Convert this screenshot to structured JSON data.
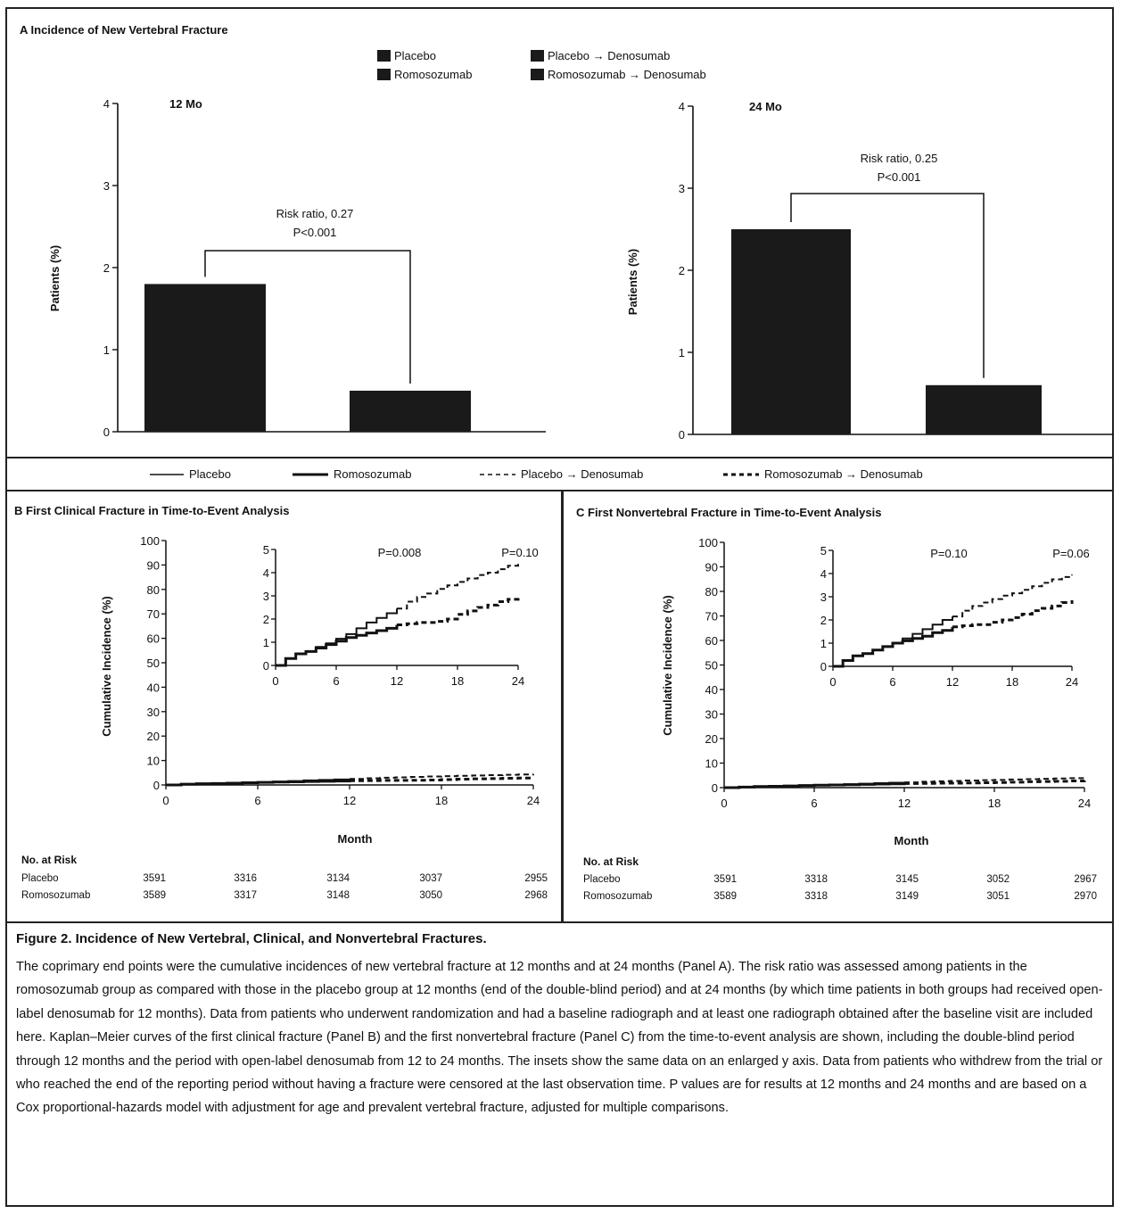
{
  "panel_a": {
    "title": "A  Incidence of New Vertebral Fracture",
    "ylabel": "Patients (%)",
    "legend": [
      "Placebo",
      "Romosozumab",
      "Placebo → Denosumab",
      "Romosozumab → Denosumab"
    ],
    "charts": [
      {
        "heading": "12 Mo",
        "risk_ratio": "Risk ratio, 0.27",
        "p_value": "P<0.001"
      },
      {
        "heading": "24 Mo",
        "risk_ratio": "Risk ratio, 0.25",
        "p_value": "P<0.001"
      }
    ]
  },
  "line_legend": [
    "Placebo",
    "Romosozumab",
    "Placebo → Denosumab",
    "Romosozumab → Denosumab"
  ],
  "panel_b": {
    "title": "B  First Clinical Fracture in Time-to-Event Analysis",
    "ylabel": "Cumulative Incidence (%)",
    "xlabel": "Month",
    "inset_p_values": [
      "P=0.008",
      "P=0.10"
    ],
    "risk_table": {
      "title": "No. at Risk",
      "rows": [
        {
          "label": "Placebo",
          "values": [
            "3591",
            "3316",
            "3134",
            "3037",
            "2955"
          ]
        },
        {
          "label": "Romosozumab",
          "values": [
            "3589",
            "3317",
            "3148",
            "3050",
            "2968"
          ]
        }
      ]
    }
  },
  "panel_c": {
    "title": "C  First Nonvertebral Fracture in Time-to-Event Analysis",
    "ylabel": "Cumulative Incidence (%)",
    "xlabel": "Month",
    "inset_p_values": [
      "P=0.10",
      "P=0.06"
    ],
    "risk_table": {
      "title": "No. at Risk",
      "rows": [
        {
          "label": "Placebo",
          "values": [
            "3591",
            "3318",
            "3145",
            "3052",
            "2967"
          ]
        },
        {
          "label": "Romosozumab",
          "values": [
            "3589",
            "3318",
            "3149",
            "3051",
            "2970"
          ]
        }
      ]
    }
  },
  "caption": {
    "title": "Figure 2. Incidence of New Vertebral, Clinical, and Nonvertebral Fractures.",
    "body": "The coprimary end points were the cumulative incidences of new vertebral fracture at 12 months and at 24 months (Panel A). The risk ratio was assessed among patients in the romosozumab group as compared with those in the placebo group at 12 months (end of the double-blind period) and at 24 months (by which time patients in both groups had received open-label denosumab for 12 months). Data from patients who underwent randomization and had a baseline radiograph and at least one radiograph obtained after the base­line visit are included here. Kaplan–Meier curves of the first clinical fracture (Panel B) and the first nonvertebral fracture (Panel C) from the time-to-event analysis are shown, including the double-blind period through 12 months and the period with open-label denosumab from 12 to 24 months. The insets show the same data on an enlarged y axis. Data from patients who withdrew from the trial or who reached the end of the reporting period without having a fracture were censored at the last observation time. P values are for results at 12 months and 24 months and are based on a Cox proportional-hazards model with adjustment for age and prevalent vertebral fracture, adjusted for multiple comparisons."
  },
  "chart_data": [
    {
      "type": "bar",
      "panel": "A",
      "title": "12 Mo",
      "ylabel": "Patients (%)",
      "ylim": [
        0,
        4
      ],
      "yticks": [
        0,
        1,
        2,
        3,
        4
      ],
      "categories": [
        "Placebo",
        "Romosozumab"
      ],
      "values": [
        1.8,
        0.5
      ],
      "colors": [
        "#1a1a1a",
        "#1a1a1a"
      ]
    },
    {
      "type": "bar",
      "panel": "A",
      "title": "24 Mo",
      "ylabel": "Patients (%)",
      "ylim": [
        0,
        4
      ],
      "yticks": [
        0,
        1,
        2,
        3,
        4
      ],
      "categories": [
        "Placebo → Denosumab",
        "Romosozumab → Denosumab"
      ],
      "values": [
        2.5,
        0.6
      ],
      "colors": [
        "#1a1a1a",
        "#1a1a1a"
      ]
    },
    {
      "type": "line",
      "panel": "B",
      "xlabel": "Month",
      "ylabel": "Cumulative Incidence (%)",
      "xlim": [
        0,
        24
      ],
      "ylim": [
        0,
        100
      ],
      "xticks": [
        0,
        6,
        12,
        18,
        24
      ],
      "yticks": [
        0,
        10,
        20,
        30,
        40,
        50,
        60,
        70,
        80,
        90,
        100
      ],
      "inset": {
        "xlim": [
          0,
          24
        ],
        "ylim": [
          0,
          5
        ],
        "xticks": [
          0,
          6,
          12,
          18,
          24
        ],
        "yticks": [
          0,
          1,
          2,
          3,
          4,
          5
        ]
      },
      "series": [
        {
          "name": "Placebo",
          "style": "solid",
          "x": [
            0,
            1,
            2,
            3,
            4,
            5,
            6,
            7,
            8,
            9,
            10,
            11,
            12
          ],
          "y": [
            0,
            0.3,
            0.5,
            0.6,
            0.8,
            0.95,
            1.15,
            1.35,
            1.6,
            1.85,
            2.05,
            2.25,
            2.45
          ]
        },
        {
          "name": "Romosozumab",
          "style": "solid",
          "x": [
            0,
            1,
            2,
            3,
            4,
            5,
            6,
            7,
            8,
            9,
            10,
            11,
            12
          ],
          "y": [
            0,
            0.3,
            0.5,
            0.6,
            0.75,
            0.9,
            1.05,
            1.2,
            1.3,
            1.4,
            1.5,
            1.6,
            1.75
          ]
        },
        {
          "name": "Placebo → Denosumab",
          "style": "dashed",
          "x": [
            12,
            13,
            14,
            15,
            16,
            17,
            18,
            19,
            20,
            21,
            22,
            23,
            24
          ],
          "y": [
            2.45,
            2.75,
            2.95,
            3.1,
            3.3,
            3.45,
            3.6,
            3.75,
            3.9,
            4.0,
            4.15,
            4.3,
            4.4
          ]
        },
        {
          "name": "Romosozumab → Denosumab",
          "style": "dashed",
          "x": [
            12,
            13,
            14,
            15,
            16,
            17,
            18,
            19,
            20,
            21,
            22,
            23,
            24
          ],
          "y": [
            1.75,
            1.8,
            1.85,
            1.85,
            1.9,
            2.0,
            2.2,
            2.35,
            2.5,
            2.6,
            2.75,
            2.85,
            3.0
          ]
        }
      ]
    },
    {
      "type": "line",
      "panel": "C",
      "xlabel": "Month",
      "ylabel": "Cumulative Incidence (%)",
      "xlim": [
        0,
        24
      ],
      "ylim": [
        0,
        100
      ],
      "xticks": [
        0,
        6,
        12,
        18,
        24
      ],
      "yticks": [
        0,
        10,
        20,
        30,
        40,
        50,
        60,
        70,
        80,
        90,
        100
      ],
      "inset": {
        "xlim": [
          0,
          24
        ],
        "ylim": [
          0,
          5
        ],
        "xticks": [
          0,
          6,
          12,
          18,
          24
        ],
        "yticks": [
          0,
          1,
          2,
          3,
          4,
          5
        ]
      },
      "series": [
        {
          "name": "Placebo",
          "style": "solid",
          "x": [
            0,
            1,
            2,
            3,
            4,
            5,
            6,
            7,
            8,
            9,
            10,
            11,
            12
          ],
          "y": [
            0,
            0.25,
            0.45,
            0.55,
            0.7,
            0.85,
            1.0,
            1.2,
            1.4,
            1.6,
            1.8,
            2.0,
            2.15
          ]
        },
        {
          "name": "Romosozumab",
          "style": "solid",
          "x": [
            0,
            1,
            2,
            3,
            4,
            5,
            6,
            7,
            8,
            9,
            10,
            11,
            12
          ],
          "y": [
            0,
            0.25,
            0.45,
            0.55,
            0.7,
            0.85,
            1.0,
            1.1,
            1.2,
            1.3,
            1.45,
            1.55,
            1.7
          ]
        },
        {
          "name": "Placebo → Denosumab",
          "style": "dashed",
          "x": [
            12,
            13,
            14,
            15,
            16,
            17,
            18,
            19,
            20,
            21,
            22,
            23,
            24
          ],
          "y": [
            2.15,
            2.4,
            2.6,
            2.75,
            2.9,
            3.05,
            3.15,
            3.3,
            3.45,
            3.6,
            3.75,
            3.85,
            3.95
          ]
        },
        {
          "name": "Romosozumab → Denosumab",
          "style": "dashed",
          "x": [
            12,
            13,
            14,
            15,
            16,
            17,
            18,
            19,
            20,
            21,
            22,
            23,
            24
          ],
          "y": [
            1.7,
            1.75,
            1.8,
            1.8,
            1.9,
            2.0,
            2.1,
            2.25,
            2.4,
            2.5,
            2.6,
            2.75,
            2.85
          ]
        }
      ]
    }
  ]
}
